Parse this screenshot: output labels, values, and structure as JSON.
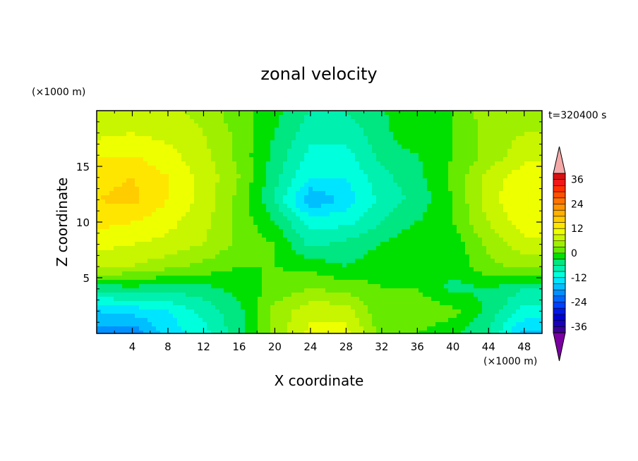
{
  "chart_data": {
    "type": "heatmap",
    "title": "zonal velocity",
    "xlabel": "X coordinate",
    "ylabel": "Z coordinate",
    "x_unit": "(×1000 m)",
    "y_unit": "(×1000 m)",
    "time_label": "t=320400 s",
    "xlim": [
      0,
      50
    ],
    "ylim": [
      0,
      20
    ],
    "x_ticks": [
      4,
      8,
      12,
      16,
      20,
      24,
      28,
      32,
      36,
      40,
      44,
      48
    ],
    "y_ticks": [
      5,
      10,
      15
    ],
    "colorbar": {
      "ticks": [
        36,
        24,
        12,
        0,
        -12,
        -24,
        -36
      ],
      "levels": [
        -42,
        -39,
        -36,
        -33,
        -30,
        -27,
        -24,
        -21,
        -18,
        -15,
        -12,
        -9,
        -6,
        -3,
        0,
        3,
        6,
        9,
        12,
        15,
        18,
        21,
        24,
        27,
        30,
        33,
        36,
        39,
        42
      ],
      "colors": [
        "#7a00a0",
        "#3b0099",
        "#1a00b8",
        "#0000d0",
        "#0018e6",
        "#0040ff",
        "#0066ff",
        "#0090ff",
        "#00bfff",
        "#00e5ff",
        "#00ffdd",
        "#00f0b0",
        "#00e680",
        "#00e000",
        "#66ea00",
        "#9ef000",
        "#c8f500",
        "#eeff00",
        "#ffe600",
        "#ffcc00",
        "#ffb000",
        "#ff9400",
        "#ff7400",
        "#ff5000",
        "#ff3000",
        "#f01818",
        "#d81010",
        "#f4a8a8"
      ]
    },
    "field_grid": {
      "nx": 13,
      "nz": 11,
      "x": [
        0,
        4,
        8,
        12,
        16,
        20,
        24,
        28,
        32,
        36,
        40,
        44,
        48
      ],
      "z": [
        0,
        2,
        4,
        6,
        8,
        10,
        12,
        14,
        16,
        18,
        20
      ],
      "u": [
        [
          -20,
          -20,
          -14,
          -10,
          -4,
          4,
          10,
          10,
          2,
          0,
          -2,
          -6,
          -16
        ],
        [
          -15,
          -14,
          -12,
          -8,
          -4,
          4,
          8,
          8,
          0,
          2,
          1,
          -4,
          -10
        ],
        [
          -5,
          -4,
          -5,
          -4,
          -2,
          1,
          3,
          2,
          0,
          0,
          -4,
          -3,
          -6
        ],
        [
          7,
          6,
          4,
          2,
          0,
          0,
          -1,
          -3,
          -1,
          0,
          -2,
          2,
          4
        ],
        [
          10,
          9,
          8,
          6,
          2,
          0,
          -7,
          -5,
          -3,
          0,
          -2,
          4,
          8
        ],
        [
          13,
          12,
          10,
          7,
          2,
          -3,
          -10,
          -10,
          -6,
          -3,
          0,
          6,
          11
        ],
        [
          15,
          16,
          12,
          8,
          2,
          -6,
          -18,
          -14,
          -8,
          -5,
          0,
          8,
          12
        ],
        [
          14,
          15,
          12,
          8,
          3,
          -5,
          -12,
          -12,
          -7,
          -4,
          1,
          7,
          11
        ],
        [
          12,
          12,
          10,
          7,
          2,
          -4,
          -10,
          -10,
          -5,
          -3,
          0,
          4,
          8
        ],
        [
          8,
          9,
          8,
          6,
          2,
          -3,
          -8,
          -8,
          -4,
          0,
          0,
          4,
          6
        ],
        [
          6,
          8,
          7,
          5,
          1,
          -2,
          -6,
          -6,
          -3,
          -2,
          0,
          5,
          6
        ]
      ]
    }
  }
}
